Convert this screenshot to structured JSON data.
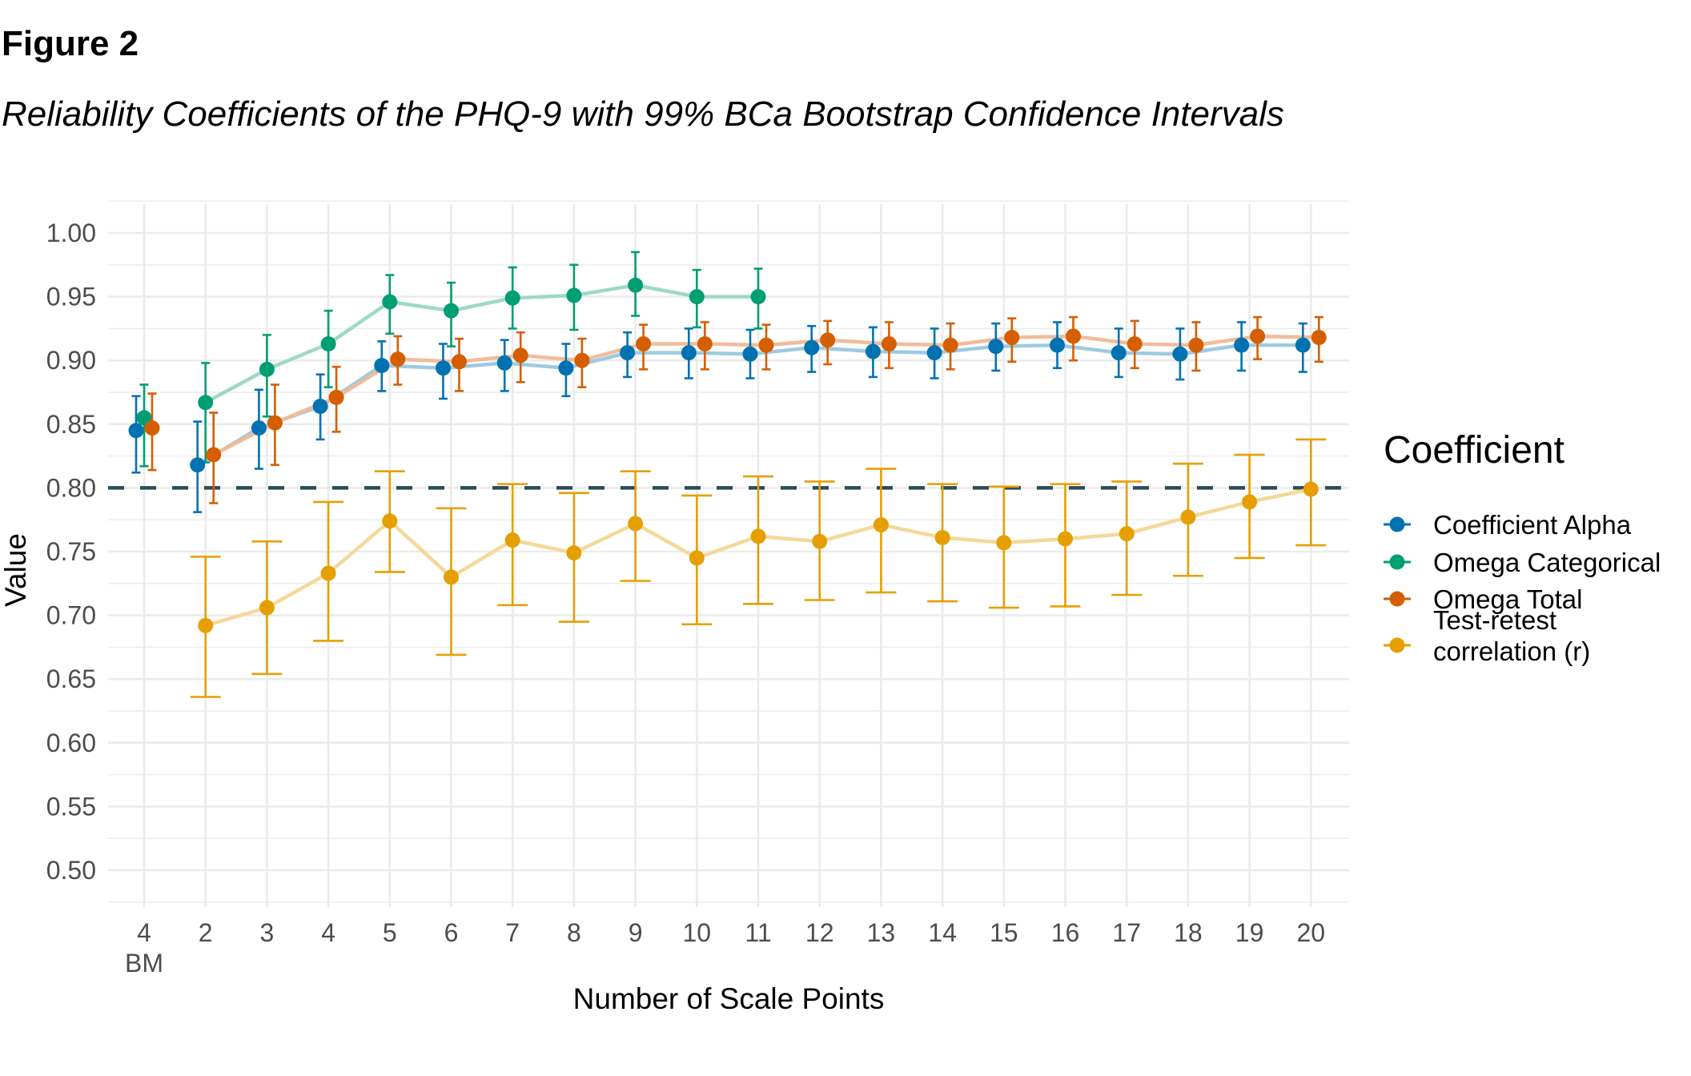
{
  "figure": {
    "label": "Figure 2",
    "title": "Reliability Coefficients of the PHQ-9 with 99% BCa Bootstrap Confidence Intervals"
  },
  "chart_data": {
    "type": "line",
    "subtype": "point-line with error bars",
    "title": "Reliability Coefficients of the PHQ-9 with 99% BCa Bootstrap Confidence Intervals",
    "xlabel": "Number of Scale Points",
    "ylabel": "Value",
    "categories": [
      "4\nBM",
      "2",
      "3",
      "4",
      "5",
      "6",
      "7",
      "8",
      "9",
      "10",
      "11",
      "12",
      "13",
      "14",
      "15",
      "16",
      "17",
      "18",
      "19",
      "20"
    ],
    "category_labels": [
      {
        "line1": "4",
        "line2": "BM"
      },
      {
        "line1": "2"
      },
      {
        "line1": "3"
      },
      {
        "line1": "4"
      },
      {
        "line1": "5"
      },
      {
        "line1": "6"
      },
      {
        "line1": "7"
      },
      {
        "line1": "8"
      },
      {
        "line1": "9"
      },
      {
        "line1": "10"
      },
      {
        "line1": "11"
      },
      {
        "line1": "12"
      },
      {
        "line1": "13"
      },
      {
        "line1": "14"
      },
      {
        "line1": "15"
      },
      {
        "line1": "16"
      },
      {
        "line1": "17"
      },
      {
        "line1": "18"
      },
      {
        "line1": "19"
      },
      {
        "line1": "20"
      }
    ],
    "ylim": [
      0.475,
      1.025
    ],
    "yticks": [
      "0.50",
      "0.55",
      "0.60",
      "0.65",
      "0.70",
      "0.75",
      "0.80",
      "0.85",
      "0.90",
      "0.95",
      "1.00"
    ],
    "grid": true,
    "reference_line": {
      "value": 0.8,
      "style": "dashed",
      "color": "#2b4a5a"
    },
    "legend": {
      "title": "Coefficient",
      "position": "right"
    },
    "series": [
      {
        "name": "Coefficient Alpha",
        "color": "#0072B2",
        "line_color": "#9ecae1",
        "connect_from_index": 1,
        "values": [
          0.845,
          0.818,
          0.847,
          0.864,
          0.896,
          0.894,
          0.898,
          0.894,
          0.906,
          0.906,
          0.905,
          0.91,
          0.907,
          0.906,
          0.911,
          0.912,
          0.906,
          0.905,
          0.912,
          0.912
        ],
        "lower": [
          0.812,
          0.781,
          0.815,
          0.838,
          0.876,
          0.87,
          0.876,
          0.872,
          0.887,
          0.886,
          0.886,
          0.891,
          0.887,
          0.886,
          0.892,
          0.894,
          0.887,
          0.885,
          0.892,
          0.891
        ],
        "upper": [
          0.872,
          0.852,
          0.877,
          0.889,
          0.915,
          0.913,
          0.916,
          0.913,
          0.922,
          0.925,
          0.924,
          0.927,
          0.926,
          0.925,
          0.929,
          0.93,
          0.925,
          0.925,
          0.93,
          0.929
        ]
      },
      {
        "name": "Omega Categorical",
        "color": "#009E73",
        "line_color": "#9dd9c5",
        "connect_from_index": 1,
        "values": [
          0.855,
          0.867,
          0.893,
          0.913,
          0.946,
          0.939,
          0.949,
          0.951,
          0.959,
          0.95,
          0.95,
          null,
          null,
          null,
          null,
          null,
          null,
          null,
          null,
          null
        ],
        "lower": [
          0.817,
          0.82,
          0.856,
          0.879,
          0.921,
          0.911,
          0.925,
          0.924,
          0.935,
          0.926,
          0.925,
          null,
          null,
          null,
          null,
          null,
          null,
          null,
          null,
          null
        ],
        "upper": [
          0.881,
          0.898,
          0.92,
          0.939,
          0.967,
          0.961,
          0.973,
          0.975,
          0.985,
          0.971,
          0.972,
          null,
          null,
          null,
          null,
          null,
          null,
          null,
          null,
          null
        ]
      },
      {
        "name": "Omega Total",
        "color": "#D55E00",
        "line_color": "#f0bc9a",
        "connect_from_index": 1,
        "values": [
          0.847,
          0.826,
          0.851,
          0.871,
          0.901,
          0.899,
          0.904,
          0.9,
          0.913,
          0.913,
          0.912,
          0.916,
          0.913,
          0.912,
          0.918,
          0.919,
          0.913,
          0.912,
          0.919,
          0.918
        ],
        "lower": [
          0.814,
          0.788,
          0.818,
          0.844,
          0.881,
          0.876,
          0.883,
          0.879,
          0.893,
          0.893,
          0.893,
          0.897,
          0.894,
          0.893,
          0.899,
          0.9,
          0.894,
          0.892,
          0.901,
          0.899
        ],
        "upper": [
          0.874,
          0.859,
          0.881,
          0.895,
          0.919,
          0.917,
          0.922,
          0.917,
          0.928,
          0.93,
          0.928,
          0.931,
          0.93,
          0.929,
          0.933,
          0.934,
          0.931,
          0.93,
          0.934,
          0.934
        ]
      },
      {
        "name": "Test-retest correlation (r)",
        "legend_lines": [
          "Test-retest",
          "correlation (r)"
        ],
        "color": "#E69F00",
        "line_color": "#f5d898",
        "connect_from_index": 1,
        "values": [
          null,
          0.692,
          0.706,
          0.733,
          0.774,
          0.73,
          0.759,
          0.749,
          0.772,
          0.745,
          0.762,
          0.758,
          0.771,
          0.761,
          0.757,
          0.76,
          0.764,
          0.777,
          0.789,
          0.799
        ],
        "lower": [
          null,
          0.636,
          0.654,
          0.68,
          0.734,
          0.669,
          0.708,
          0.695,
          0.727,
          0.693,
          0.709,
          0.712,
          0.718,
          0.711,
          0.706,
          0.707,
          0.716,
          0.731,
          0.745,
          0.755
        ],
        "upper": [
          null,
          0.746,
          0.758,
          0.789,
          0.813,
          0.784,
          0.803,
          0.796,
          0.813,
          0.794,
          0.809,
          0.805,
          0.815,
          0.803,
          0.801,
          0.803,
          0.805,
          0.819,
          0.826,
          0.838
        ]
      }
    ]
  }
}
